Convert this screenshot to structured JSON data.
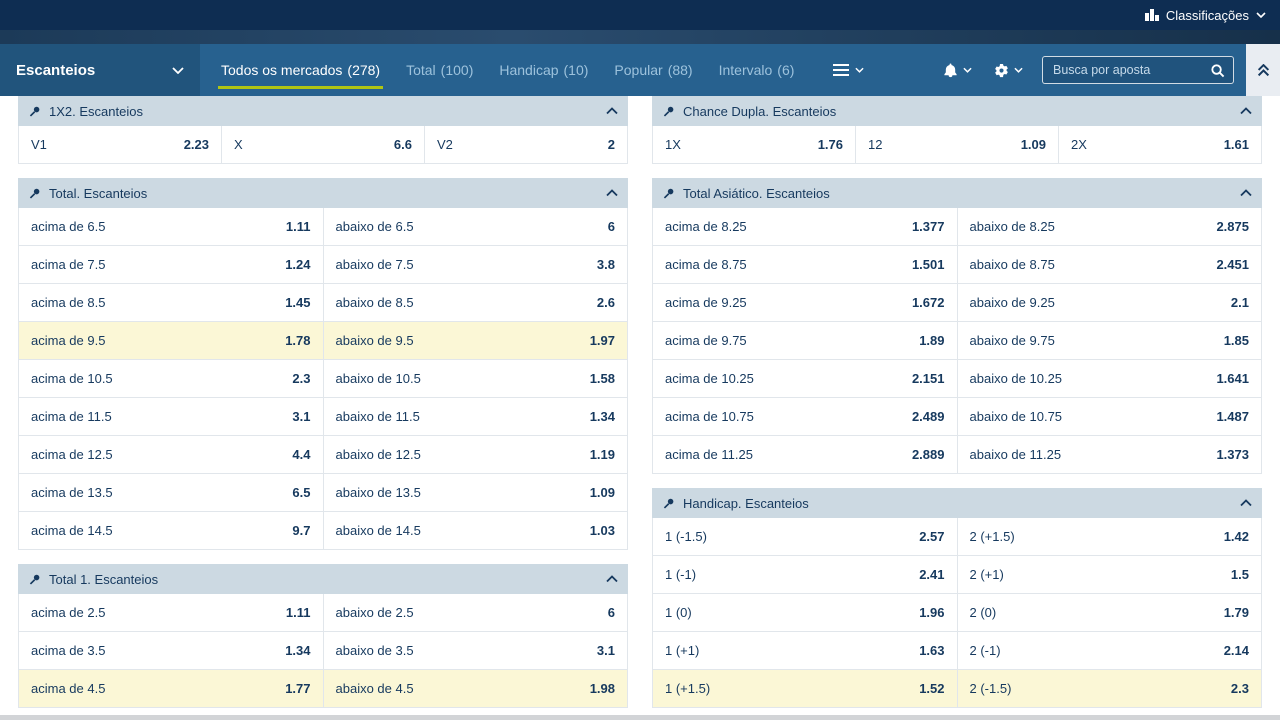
{
  "topbar": {
    "classifications_label": "Classificações"
  },
  "nav": {
    "category_label": "Escanteios",
    "tabs": [
      {
        "id": "todos-os-mercados",
        "label": "Todos os mercados",
        "count": "(278)",
        "active": true
      },
      {
        "id": "total",
        "label": "Total",
        "count": "(100)",
        "active": false
      },
      {
        "id": "handicap",
        "label": "Handicap",
        "count": "(10)",
        "active": false
      },
      {
        "id": "popular",
        "label": "Popular",
        "count": "(88)",
        "active": false
      },
      {
        "id": "intervalo",
        "label": "Intervalo",
        "count": "(6)",
        "active": false
      }
    ],
    "search_placeholder": "Busca por aposta"
  },
  "colors": {
    "topbar": "#0e2d52",
    "navbar": "#27618f",
    "accent_underline": "#b0c513",
    "header_bg": "#ccd9e2",
    "highlight": "#fbf7d6",
    "text": "#16395e"
  },
  "columns": [
    [
      {
        "title": "1X2. Escanteios",
        "rows": [
          [
            {
              "l": "V1",
              "o": "2.23"
            },
            {
              "l": "X",
              "o": "6.6"
            },
            {
              "l": "V2",
              "o": "2"
            }
          ]
        ]
      },
      {
        "title": "Total. Escanteios",
        "rows": [
          [
            {
              "l": "acima de 6.5",
              "o": "1.11"
            },
            {
              "l": "abaixo de 6.5",
              "o": "6"
            }
          ],
          [
            {
              "l": "acima de 7.5",
              "o": "1.24"
            },
            {
              "l": "abaixo de 7.5",
              "o": "3.8"
            }
          ],
          [
            {
              "l": "acima de 8.5",
              "o": "1.45"
            },
            {
              "l": "abaixo de 8.5",
              "o": "2.6"
            }
          ],
          [
            {
              "l": "acima de 9.5",
              "o": "1.78",
              "hl": true
            },
            {
              "l": "abaixo de 9.5",
              "o": "1.97",
              "hl": true
            }
          ],
          [
            {
              "l": "acima de 10.5",
              "o": "2.3"
            },
            {
              "l": "abaixo de 10.5",
              "o": "1.58"
            }
          ],
          [
            {
              "l": "acima de 11.5",
              "o": "3.1"
            },
            {
              "l": "abaixo de 11.5",
              "o": "1.34"
            }
          ],
          [
            {
              "l": "acima de 12.5",
              "o": "4.4"
            },
            {
              "l": "abaixo de 12.5",
              "o": "1.19"
            }
          ],
          [
            {
              "l": "acima de 13.5",
              "o": "6.5"
            },
            {
              "l": "abaixo de 13.5",
              "o": "1.09"
            }
          ],
          [
            {
              "l": "acima de 14.5",
              "o": "9.7"
            },
            {
              "l": "abaixo de 14.5",
              "o": "1.03"
            }
          ]
        ]
      },
      {
        "title": "Total 1. Escanteios",
        "rows": [
          [
            {
              "l": "acima de 2.5",
              "o": "1.11"
            },
            {
              "l": "abaixo de 2.5",
              "o": "6"
            }
          ],
          [
            {
              "l": "acima de 3.5",
              "o": "1.34"
            },
            {
              "l": "abaixo de 3.5",
              "o": "3.1"
            }
          ],
          [
            {
              "l": "acima de 4.5",
              "o": "1.77",
              "hl": true
            },
            {
              "l": "abaixo de 4.5",
              "o": "1.98",
              "hl": true
            }
          ]
        ]
      }
    ],
    [
      {
        "title": "Chance Dupla. Escanteios",
        "rows": [
          [
            {
              "l": "1X",
              "o": "1.76"
            },
            {
              "l": "12",
              "o": "1.09"
            },
            {
              "l": "2X",
              "o": "1.61"
            }
          ]
        ]
      },
      {
        "title": "Total Asiático. Escanteios",
        "rows": [
          [
            {
              "l": "acima de 8.25",
              "o": "1.377"
            },
            {
              "l": "abaixo de 8.25",
              "o": "2.875"
            }
          ],
          [
            {
              "l": "acima de 8.75",
              "o": "1.501"
            },
            {
              "l": "abaixo de 8.75",
              "o": "2.451"
            }
          ],
          [
            {
              "l": "acima de 9.25",
              "o": "1.672"
            },
            {
              "l": "abaixo de 9.25",
              "o": "2.1"
            }
          ],
          [
            {
              "l": "acima de 9.75",
              "o": "1.89"
            },
            {
              "l": "abaixo de 9.75",
              "o": "1.85"
            }
          ],
          [
            {
              "l": "acima de 10.25",
              "o": "2.151"
            },
            {
              "l": "abaixo de 10.25",
              "o": "1.641"
            }
          ],
          [
            {
              "l": "acima de 10.75",
              "o": "2.489"
            },
            {
              "l": "abaixo de 10.75",
              "o": "1.487"
            }
          ],
          [
            {
              "l": "acima de 11.25",
              "o": "2.889"
            },
            {
              "l": "abaixo de 11.25",
              "o": "1.373"
            }
          ]
        ]
      },
      {
        "title": "Handicap. Escanteios",
        "rows": [
          [
            {
              "l": "1 (-1.5)",
              "o": "2.57"
            },
            {
              "l": "2 (+1.5)",
              "o": "1.42"
            }
          ],
          [
            {
              "l": "1 (-1)",
              "o": "2.41"
            },
            {
              "l": "2 (+1)",
              "o": "1.5"
            }
          ],
          [
            {
              "l": "1 (0)",
              "o": "1.96"
            },
            {
              "l": "2 (0)",
              "o": "1.79"
            }
          ],
          [
            {
              "l": "1 (+1)",
              "o": "1.63"
            },
            {
              "l": "2 (-1)",
              "o": "2.14"
            }
          ],
          [
            {
              "l": "1 (+1.5)",
              "o": "1.52",
              "hl": true
            },
            {
              "l": "2 (-1.5)",
              "o": "2.3",
              "hl": true
            }
          ]
        ]
      }
    ]
  ]
}
